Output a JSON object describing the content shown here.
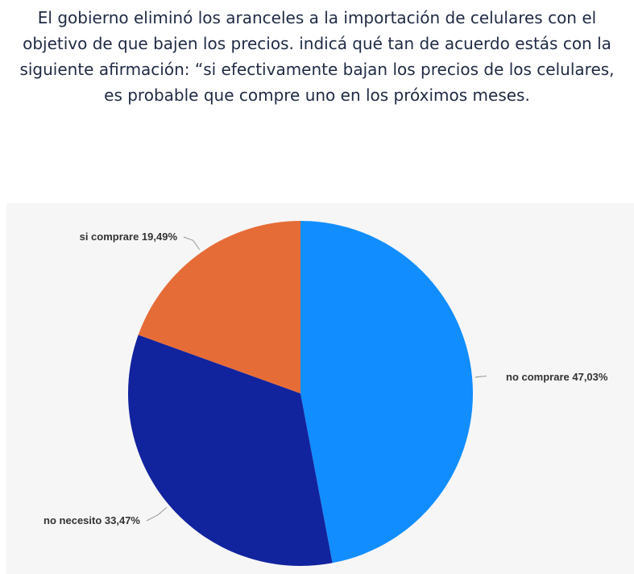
{
  "title": "El gobierno eliminó los aranceles a la importación de celulares con el objetivo de que bajen los precios. indicá qué tan de acuerdo estás con la siguiente afirmación: “si efectivamente bajan los precios de los celulares, es probable que compre uno en los próximos meses.",
  "chart_data": {
    "type": "pie",
    "title": "El gobierno eliminó los aranceles a la importación de celulares con el objetivo de que bajen los precios. indicá qué tan de acuerdo estás con la siguiente afirmación: “si efectivamente bajan los precios de los celulares, es probable que compre uno en los próximos meses.",
    "slices": [
      {
        "label": "no comprare",
        "value": 47.03,
        "display": "no comprare 47,03%",
        "color": "#118dff"
      },
      {
        "label": "no necesito",
        "value": 33.47,
        "display": "no necesito 33,47%",
        "color": "#12239e"
      },
      {
        "label": "si comprare",
        "value": 19.49,
        "display": "si comprare 19,49%",
        "color": "#e66c37"
      }
    ],
    "start_angle": "12 o'clock",
    "direction": "clockwise",
    "data_labels": "outside with leader lines"
  }
}
